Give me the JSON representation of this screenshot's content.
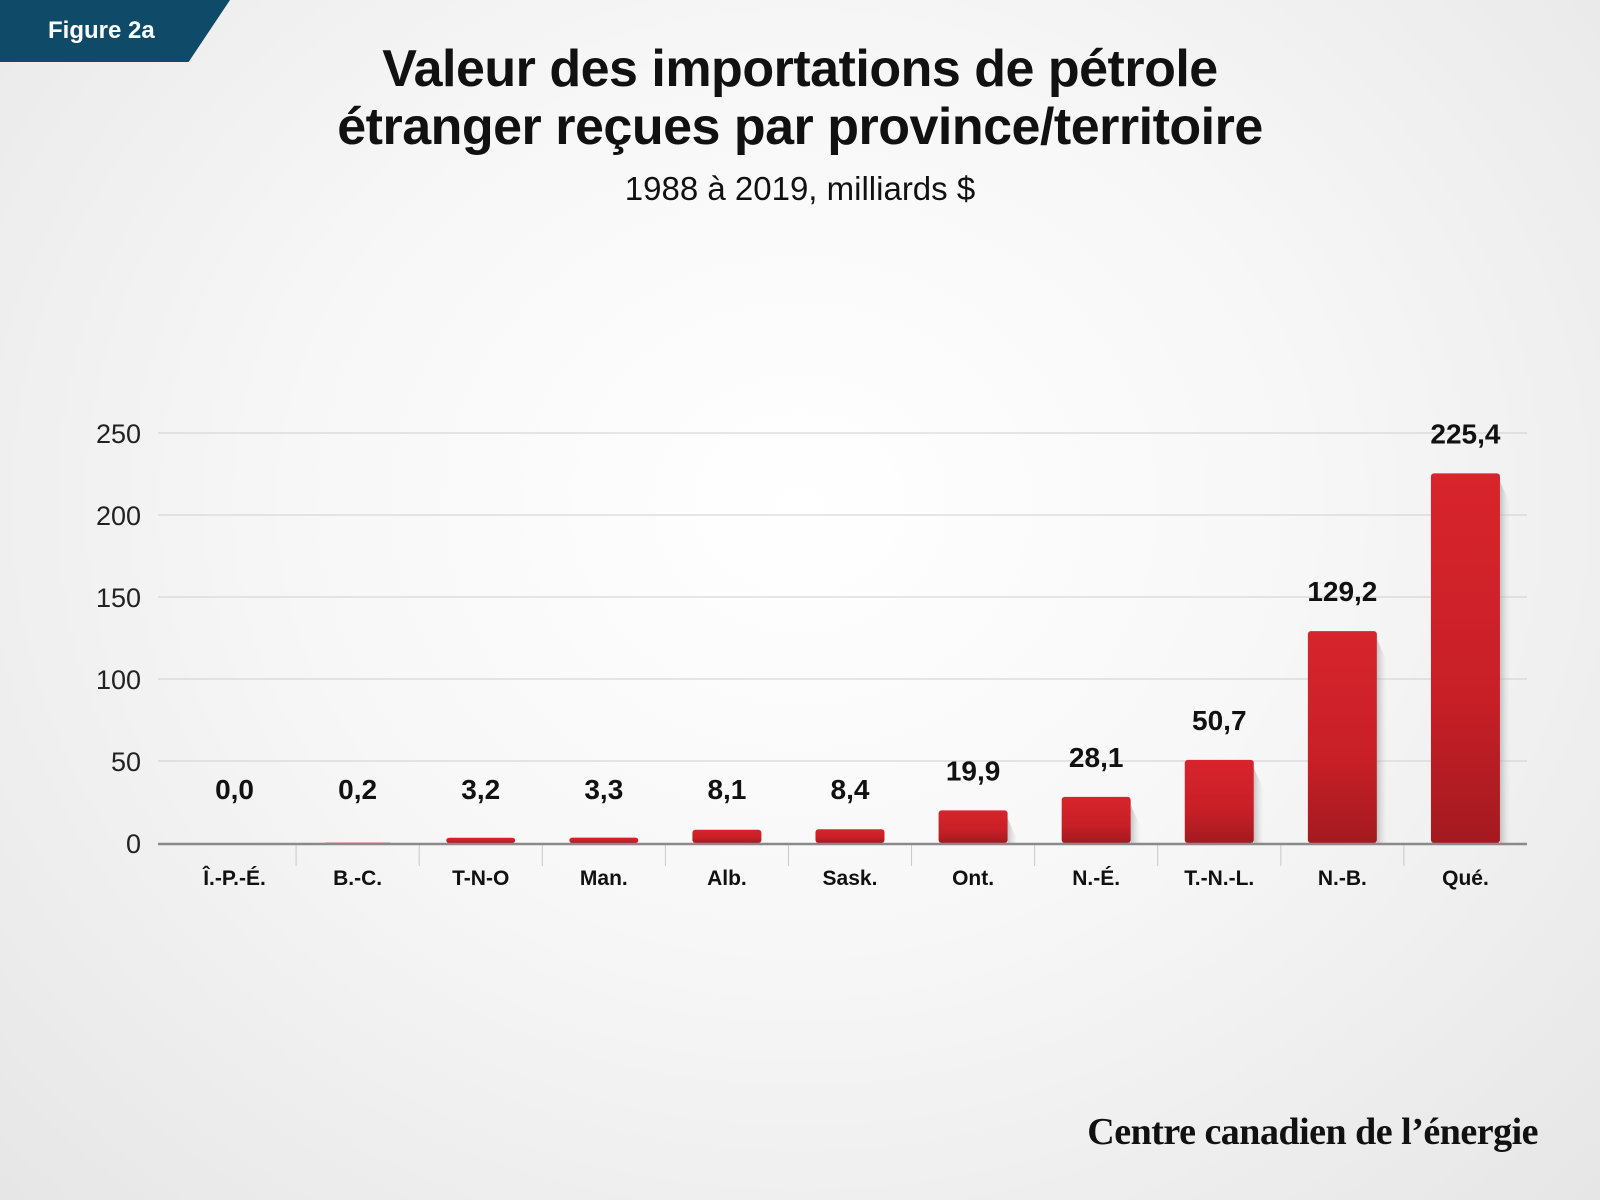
{
  "badge": {
    "label": "Figure 2a"
  },
  "title": {
    "line1": "Valeur des importations de pétrole",
    "line2": "étranger reçues par province/territoire"
  },
  "subtitle": "1988 à 2019, milliards $",
  "brand": "Centre canadien de l’énergie",
  "colors": {
    "bar": "#cf2229",
    "bar_dark": "#a51b20",
    "badge": "#0f4a68"
  },
  "chart_data": {
    "type": "bar",
    "title": "Valeur des importations de pétrole étranger reçues par province/territoire",
    "subtitle": "1988 à 2019, milliards $",
    "categories": [
      "Î.-P.-É.",
      "B.-C.",
      "T-N-O",
      "Man.",
      "Alb.",
      "Sask.",
      "Ont.",
      "N.-É.",
      "T.-N.-L.",
      "N.-B.",
      "Qué."
    ],
    "values": [
      0.0,
      0.2,
      3.2,
      3.3,
      8.1,
      8.4,
      19.9,
      28.1,
      50.7,
      129.2,
      225.4
    ],
    "value_labels": [
      "0,0",
      "0,2",
      "3,2",
      "3,3",
      "8,1",
      "8,4",
      "19,9",
      "28,1",
      "50,7",
      "129,2",
      "225,4"
    ],
    "y_ticks": [
      0,
      50,
      100,
      150,
      200,
      250
    ],
    "ylim": [
      0,
      250
    ],
    "grid": true,
    "xlabel": "",
    "ylabel": ""
  }
}
